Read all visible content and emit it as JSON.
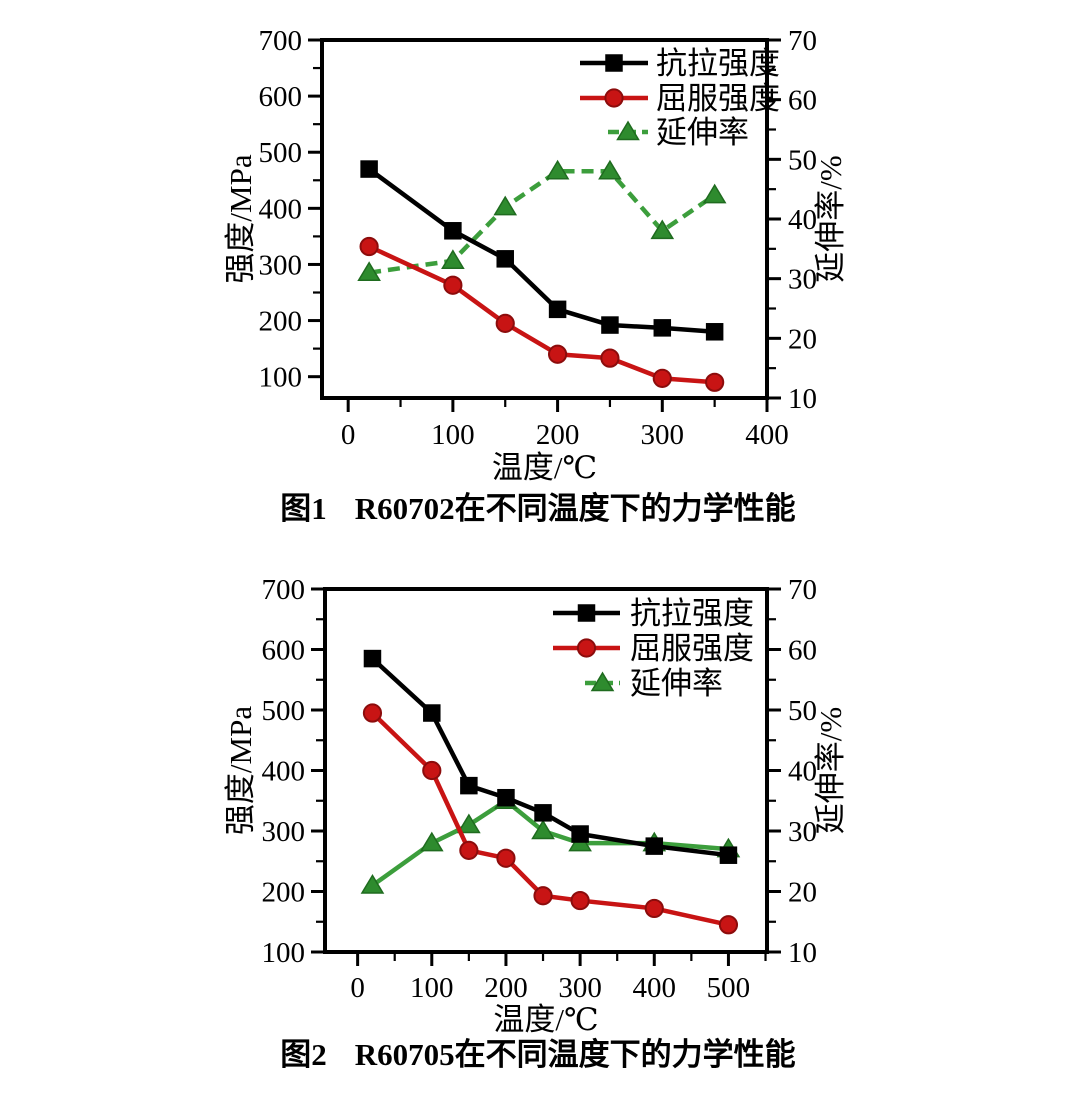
{
  "page": {
    "background": "#ffffff"
  },
  "figures": [
    {
      "caption_label": "图1",
      "caption_text": "R60702在不同温度下的力学性能"
    },
    {
      "caption_label": "图2",
      "caption_text": "R60705在不同温度下的力学性能"
    }
  ],
  "chart_data": [
    {
      "type": "line",
      "title": "图1 R60702在不同温度下的力学性能",
      "xlabel": "温度/℃",
      "ylabel_left": "强度/MPa",
      "ylabel_right": "延伸率/%",
      "x": [
        20,
        100,
        150,
        200,
        250,
        300,
        350
      ],
      "x_ticks": [
        0,
        100,
        200,
        300,
        400
      ],
      "x_minor_step": 50,
      "xlim": [
        -25,
        400
      ],
      "left_ticks": [
        100,
        200,
        300,
        400,
        500,
        600,
        700
      ],
      "left_minor_step": 50,
      "ylim_left": [
        62,
        700
      ],
      "right_ticks": [
        10,
        20,
        30,
        40,
        50,
        60,
        70
      ],
      "right_minor_step": 5,
      "ylim_right": [
        10,
        70
      ],
      "grid": false,
      "legend_position": "top-right-inside",
      "series": [
        {
          "name": "抗拉强度",
          "id": "tensile-strength",
          "axis": "left",
          "marker": "square",
          "line": "solid",
          "color": "#000000",
          "edge_color": "#000000",
          "values": [
            470,
            360,
            310,
            220,
            192,
            187,
            180
          ]
        },
        {
          "name": "屈服强度",
          "id": "yield-strength",
          "axis": "left",
          "marker": "circle",
          "line": "solid",
          "color": "#c81414",
          "edge_color": "#8c0c0c",
          "values": [
            332,
            263,
            195,
            140,
            133,
            97,
            90
          ]
        },
        {
          "name": "延伸率",
          "id": "elongation",
          "axis": "right",
          "marker": "triangle",
          "line": "dashed",
          "color": "#3c9e3c",
          "marker_color": "#2e8b2e",
          "edge_color": "#1f6b1f",
          "values": [
            31,
            33,
            42,
            48,
            48,
            38,
            44
          ]
        }
      ]
    },
    {
      "type": "line",
      "title": "图2 R60705在不同温度下的力学性能",
      "xlabel": "温度/℃",
      "ylabel_left": "强度/MPa",
      "ylabel_right": "延伸率/%",
      "x": [
        20,
        100,
        150,
        200,
        250,
        300,
        400,
        500
      ],
      "x_ticks": [
        0,
        100,
        200,
        300,
        400,
        500
      ],
      "x_minor_step": 50,
      "xlim": [
        -44,
        552
      ],
      "left_ticks": [
        100,
        200,
        300,
        400,
        500,
        600,
        700
      ],
      "left_minor_step": 50,
      "ylim_left": [
        100,
        700
      ],
      "right_ticks": [
        10,
        20,
        30,
        40,
        50,
        60,
        70
      ],
      "right_minor_step": 5,
      "ylim_right": [
        10,
        70
      ],
      "grid": false,
      "legend_position": "top-right-inside",
      "series": [
        {
          "name": "抗拉强度",
          "id": "tensile-strength",
          "axis": "left",
          "marker": "square",
          "line": "solid",
          "color": "#000000",
          "edge_color": "#000000",
          "values": [
            585,
            495,
            375,
            355,
            330,
            295,
            275,
            260
          ]
        },
        {
          "name": "屈服强度",
          "id": "yield-strength",
          "axis": "left",
          "marker": "circle",
          "line": "solid",
          "color": "#c81414",
          "edge_color": "#8c0c0c",
          "values": [
            495,
            400,
            268,
            255,
            193,
            185,
            172,
            145
          ]
        },
        {
          "name": "延伸率",
          "id": "elongation",
          "axis": "right",
          "marker": "triangle",
          "line": "solid",
          "color": "#3c9e3c",
          "marker_color": "#2e8b2e",
          "edge_color": "#1f6b1f",
          "values": [
            21,
            28,
            31,
            35,
            30,
            28,
            28,
            27
          ]
        }
      ]
    }
  ]
}
